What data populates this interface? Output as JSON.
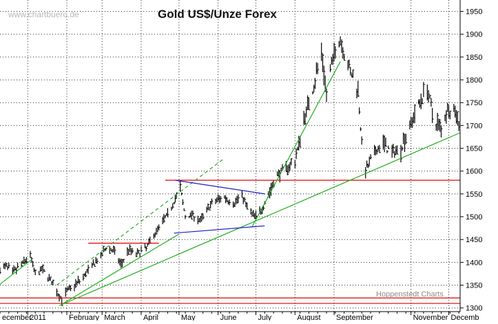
{
  "header": {
    "watermark": "www.chartbuero.de",
    "title": "Gold US$/Unze Forex",
    "credit": "Hoppenstedt Charts"
  },
  "colors": {
    "background": "#ffffff",
    "price": "#000000",
    "grid": "#000000",
    "support_resistance": "#e00000",
    "trend": "#1fae1f",
    "triangle": "#1c1ccc"
  },
  "chart_data": {
    "type": "ohlc",
    "title": "Gold US$/Unze Forex",
    "xlabel": "",
    "ylabel": "",
    "ylim": [
      1292,
      1975
    ],
    "xlim": [
      "2010-12-10",
      "2011-12-10"
    ],
    "grid": "dotted",
    "y_axis_position": "right",
    "y_ticks": [
      1300,
      1350,
      1400,
      1450,
      1500,
      1550,
      1600,
      1650,
      1700,
      1750,
      1800,
      1850,
      1900,
      1950
    ],
    "x_ticks": [
      {
        "label": "ecember",
        "date": "2010-12-01"
      },
      {
        "label": "2011",
        "date": "2011-01-01"
      },
      {
        "label": "February",
        "date": "2011-02-01"
      },
      {
        "label": "March",
        "date": "2011-03-01"
      },
      {
        "label": "April",
        "date": "2011-04-01"
      },
      {
        "label": "May",
        "date": "2011-05-01"
      },
      {
        "label": "June",
        "date": "2011-06-01"
      },
      {
        "label": "July",
        "date": "2011-07-01"
      },
      {
        "label": "August",
        "date": "2011-08-01"
      },
      {
        "label": "September",
        "date": "2011-09-01"
      },
      {
        "label": "November",
        "date": "2011-11-01"
      },
      {
        "label": "Decemb",
        "date": "2011-12-01"
      }
    ],
    "price_path": [
      [
        "2010-12-10",
        1384
      ],
      [
        "2010-12-15",
        1392
      ],
      [
        "2010-12-20",
        1377
      ],
      [
        "2010-12-28",
        1398
      ],
      [
        "2011-01-03",
        1415
      ],
      [
        "2011-01-07",
        1372
      ],
      [
        "2011-01-12",
        1385
      ],
      [
        "2011-01-18",
        1366
      ],
      [
        "2011-01-24",
        1335
      ],
      [
        "2011-01-28",
        1318
      ],
      [
        "2011-02-01",
        1336
      ],
      [
        "2011-02-07",
        1350
      ],
      [
        "2011-02-14",
        1368
      ],
      [
        "2011-02-21",
        1392
      ],
      [
        "2011-02-28",
        1412
      ],
      [
        "2011-03-04",
        1433
      ],
      [
        "2011-03-10",
        1425
      ],
      [
        "2011-03-16",
        1395
      ],
      [
        "2011-03-22",
        1428
      ],
      [
        "2011-03-29",
        1418
      ],
      [
        "2011-04-05",
        1432
      ],
      [
        "2011-04-11",
        1460
      ],
      [
        "2011-04-18",
        1490
      ],
      [
        "2011-04-22",
        1505
      ],
      [
        "2011-04-28",
        1540
      ],
      [
        "2011-05-02",
        1562
      ],
      [
        "2011-05-06",
        1500
      ],
      [
        "2011-05-12",
        1505
      ],
      [
        "2011-05-18",
        1490
      ],
      [
        "2011-05-24",
        1520
      ],
      [
        "2011-05-31",
        1537
      ],
      [
        "2011-06-06",
        1543
      ],
      [
        "2011-06-13",
        1528
      ],
      [
        "2011-06-20",
        1548
      ],
      [
        "2011-06-24",
        1520
      ],
      [
        "2011-06-30",
        1500
      ],
      [
        "2011-07-05",
        1513
      ],
      [
        "2011-07-11",
        1549
      ],
      [
        "2011-07-18",
        1592
      ],
      [
        "2011-07-25",
        1606
      ],
      [
        "2011-08-01",
        1622
      ],
      [
        "2011-08-08",
        1712
      ],
      [
        "2011-08-15",
        1780
      ],
      [
        "2011-08-22",
        1860
      ],
      [
        "2011-08-26",
        1770
      ],
      [
        "2011-09-01",
        1860
      ],
      [
        "2011-09-06",
        1890
      ],
      [
        "2011-09-13",
        1822
      ],
      [
        "2011-09-20",
        1780
      ],
      [
        "2011-09-23",
        1660
      ],
      [
        "2011-09-26",
        1600
      ],
      [
        "2011-10-03",
        1640
      ],
      [
        "2011-10-10",
        1660
      ],
      [
        "2011-10-17",
        1640
      ],
      [
        "2011-10-24",
        1652
      ],
      [
        "2011-10-31",
        1700
      ],
      [
        "2011-11-08",
        1752
      ],
      [
        "2011-11-14",
        1785
      ],
      [
        "2011-11-18",
        1722
      ],
      [
        "2011-11-25",
        1692
      ],
      [
        "2011-11-30",
        1740
      ],
      [
        "2011-12-06",
        1728
      ],
      [
        "2011-12-09",
        1712
      ]
    ],
    "annotations": [
      {
        "type": "horizontal",
        "name": "support-1310",
        "color": "#e00000",
        "y": 1310
      },
      {
        "type": "horizontal",
        "name": "support-1322",
        "color": "#e00000",
        "y": 1322
      },
      {
        "type": "horizontal",
        "name": "resistance-1580",
        "color": "#e00000",
        "y": 1580,
        "x_from": "2011-04-20",
        "x_to": "2011-12-10"
      },
      {
        "type": "segment",
        "name": "resistance-1442",
        "color": "#e00000",
        "from": [
          "2011-02-18",
          1442
        ],
        "to": [
          "2011-04-15",
          1442
        ]
      },
      {
        "type": "segment",
        "name": "trend-line-early",
        "color": "#1fae1f",
        "from": [
          "2010-12-10",
          1352
        ],
        "to": [
          "2011-01-05",
          1408
        ]
      },
      {
        "type": "segment",
        "name": "trend-line-upper",
        "color": "#1fae1f",
        "from": [
          "2011-01-28",
          1308
        ],
        "to": [
          "2011-05-01",
          1462
        ]
      },
      {
        "type": "segment",
        "name": "trend-line-long",
        "color": "#1fae1f",
        "from": [
          "2011-01-26",
          1305
        ],
        "to": [
          "2011-12-10",
          1684
        ]
      },
      {
        "type": "segment",
        "name": "trend-line-steep",
        "color": "#1fae1f",
        "from": [
          "2011-06-28",
          1478
        ],
        "to": [
          "2011-09-06",
          1840
        ]
      },
      {
        "type": "segment",
        "name": "channel-line-dashed",
        "color": "#1fae1f",
        "dashed": true,
        "from": [
          "2011-01-24",
          1350
        ],
        "to": [
          "2011-06-05",
          1626
        ]
      },
      {
        "type": "segment",
        "name": "triangle-upper",
        "color": "#1c1ccc",
        "from": [
          "2011-04-28",
          1580
        ],
        "to": [
          "2011-07-08",
          1550
        ]
      },
      {
        "type": "segment",
        "name": "triangle-lower",
        "color": "#1c1ccc",
        "from": [
          "2011-04-27",
          1464
        ],
        "to": [
          "2011-07-08",
          1480
        ]
      }
    ]
  }
}
